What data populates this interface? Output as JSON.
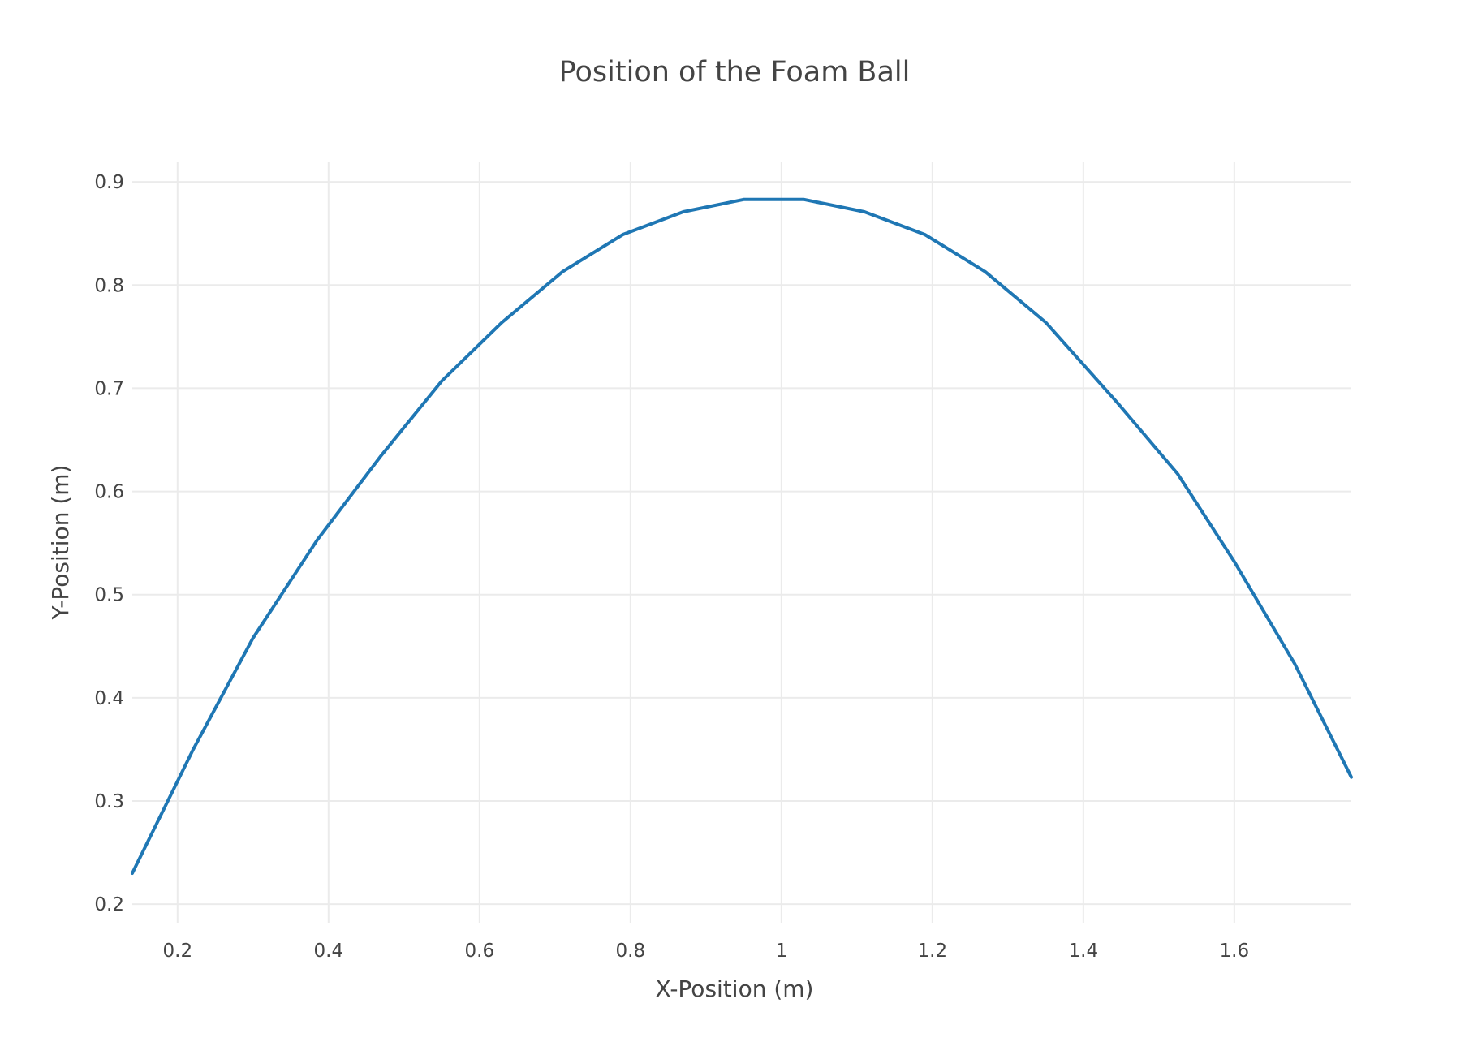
{
  "chart_data": {
    "type": "line",
    "title": "Position of the Foam Ball",
    "xlabel": "X-Position (m)",
    "ylabel": "Y-Position (m)",
    "xlim": [
      0.14,
      1.755
    ],
    "ylim": [
      0.182,
      0.919
    ],
    "grid": true,
    "legend": "none",
    "x_ticks": [
      {
        "value": 0.2,
        "label": "0.2"
      },
      {
        "value": 0.4,
        "label": "0.4"
      },
      {
        "value": 0.6,
        "label": "0.6"
      },
      {
        "value": 0.8,
        "label": "0.8"
      },
      {
        "value": 1.0,
        "label": "1"
      },
      {
        "value": 1.2,
        "label": "1.2"
      },
      {
        "value": 1.4,
        "label": "1.4"
      },
      {
        "value": 1.6,
        "label": "1.6"
      }
    ],
    "y_ticks": [
      {
        "value": 0.2,
        "label": "0.2"
      },
      {
        "value": 0.3,
        "label": "0.3"
      },
      {
        "value": 0.4,
        "label": "0.4"
      },
      {
        "value": 0.5,
        "label": "0.5"
      },
      {
        "value": 0.6,
        "label": "0.6"
      },
      {
        "value": 0.7,
        "label": "0.7"
      },
      {
        "value": 0.8,
        "label": "0.8"
      },
      {
        "value": 0.9,
        "label": "0.9"
      }
    ],
    "series": [
      {
        "color": "#1f77b4",
        "x": [
          0.14,
          0.22,
          0.3,
          0.385,
          0.47,
          0.55,
          0.63,
          0.71,
          0.79,
          0.87,
          0.95,
          1.03,
          1.11,
          1.19,
          1.27,
          1.35,
          1.445,
          1.525,
          1.6,
          1.68,
          1.755
        ],
        "y": [
          0.23,
          0.349,
          0.458,
          0.553,
          0.635,
          0.707,
          0.764,
          0.813,
          0.849,
          0.871,
          0.883,
          0.883,
          0.871,
          0.849,
          0.813,
          0.764,
          0.686,
          0.617,
          0.532,
          0.433,
          0.323
        ]
      }
    ]
  }
}
